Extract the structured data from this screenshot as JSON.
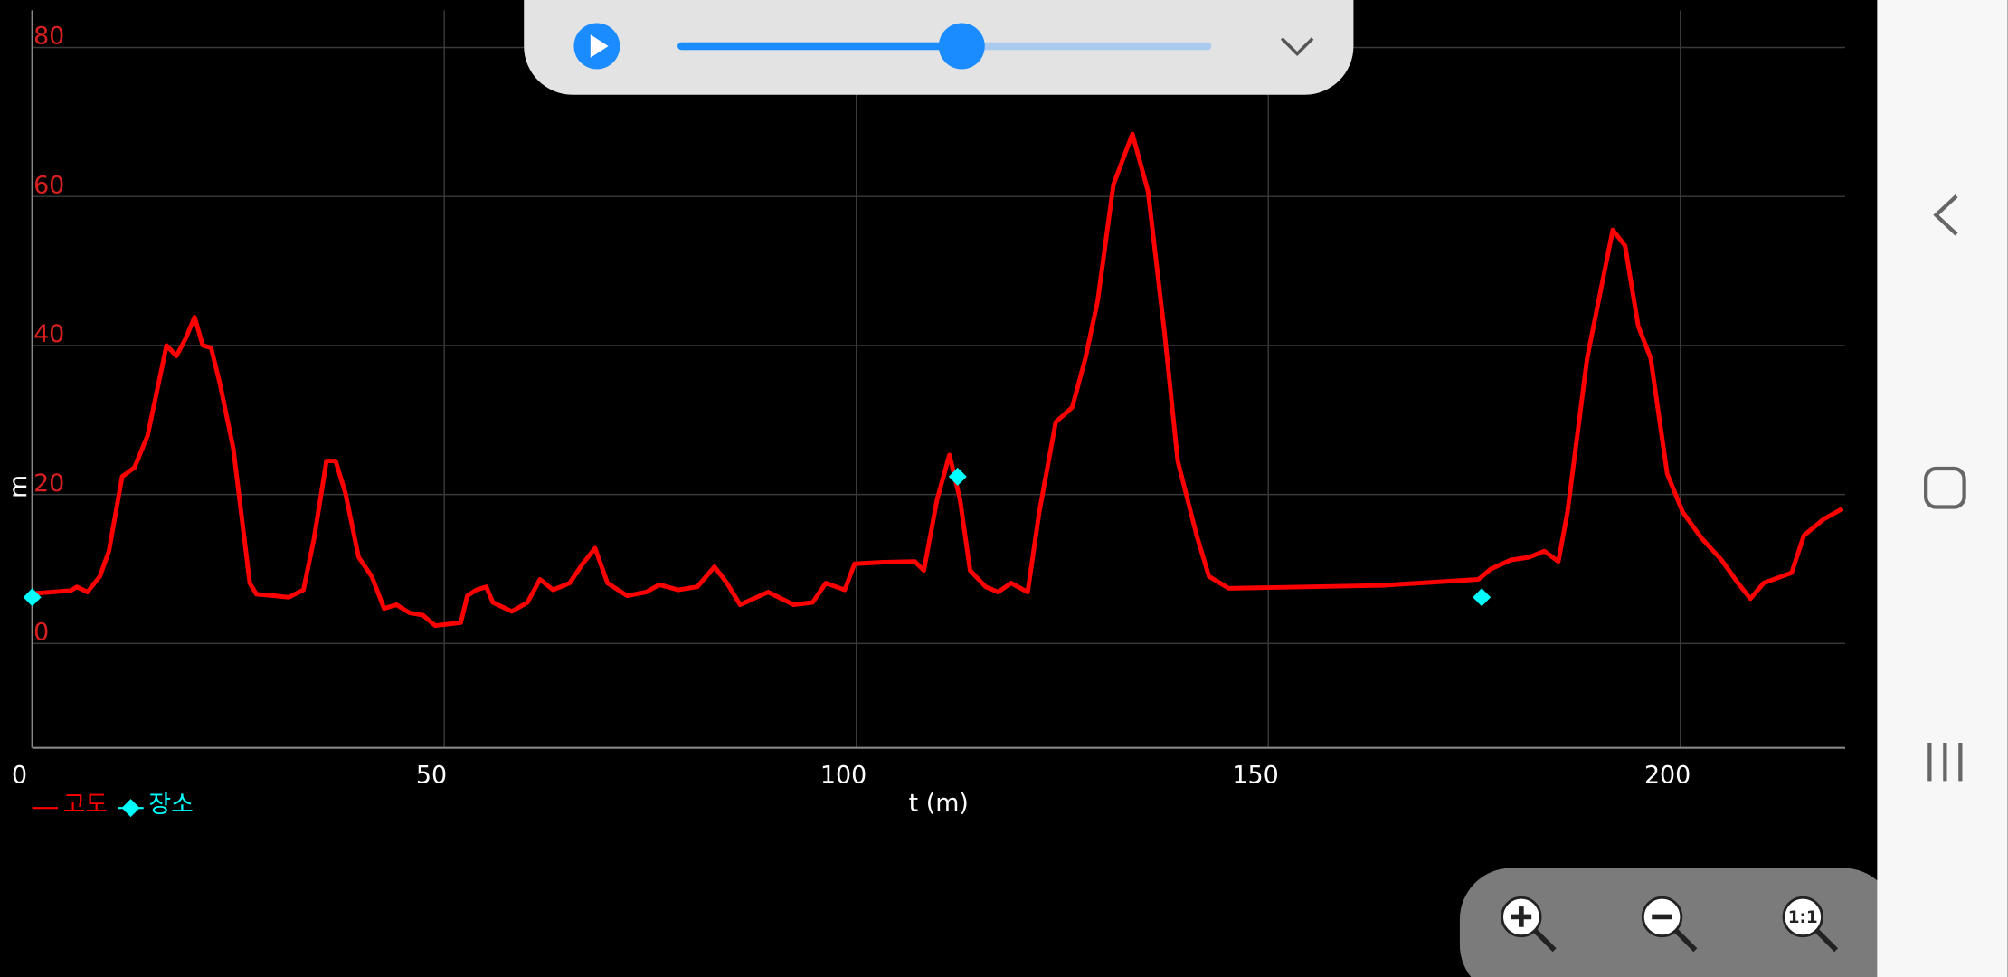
{
  "chart_data": {
    "type": "line",
    "x_label": "t (m)",
    "y_label": "m",
    "xlim": [
      0,
      220
    ],
    "ylim": [
      -14,
      85
    ],
    "xticks": [
      0,
      50,
      100,
      150,
      200
    ],
    "yticks": [
      0,
      20,
      40,
      60,
      80
    ],
    "grid": true,
    "series": [
      {
        "name": "고도",
        "type": "line",
        "color": "#ff0000",
        "x": [
          0,
          4.7,
          5.4,
          6.7,
          8.2,
          9.3,
          10.9,
          12.4,
          14,
          16.3,
          17.5,
          18.6,
          19.7,
          20.7,
          21.7,
          22.8,
          24.4,
          26.4,
          27.2,
          29.5,
          31.1,
          32.9,
          34.2,
          35.7,
          36.8,
          38,
          39.6,
          41.2,
          42.7,
          44.2,
          45.8,
          47.4,
          48.9,
          52,
          52.8,
          53.9,
          55.1,
          55.9,
          58.2,
          60.1,
          61.6,
          63.2,
          65.2,
          66.8,
          68.3,
          69.8,
          72.2,
          74.5,
          76.1,
          78.4,
          80.7,
          82.8,
          84.3,
          85.9,
          89.3,
          92.4,
          94.7,
          96.3,
          98.6,
          99.8,
          103.3,
          107.1,
          108.2,
          109.8,
          111.3,
          112.6,
          113.8,
          115.7,
          117.2,
          118.8,
          120.8,
          122.2,
          124.2,
          126.2,
          127.8,
          129.3,
          131.2,
          133.5,
          135.4,
          137.4,
          139,
          141.3,
          142.8,
          145.2,
          163.8,
          175.5,
          177,
          179.4,
          181.7,
          183.5,
          185.2,
          186.3,
          188.7,
          191.8,
          193.3,
          194.9,
          196.4,
          198.4,
          200.3,
          202.6,
          205,
          207,
          208.5,
          210.1,
          213.5,
          215,
          217.4,
          219.7
        ],
        "values": [
          6.7,
          7.1,
          7.6,
          6.9,
          9,
          12.4,
          22.4,
          23.6,
          27.9,
          40,
          38.6,
          40.9,
          43.8,
          40,
          39.7,
          34.8,
          26.2,
          8.1,
          6.6,
          6.4,
          6.2,
          7.2,
          14.1,
          24.5,
          24.5,
          20.2,
          11.6,
          9,
          4.7,
          5.2,
          4.1,
          3.8,
          2.4,
          2.8,
          6.4,
          7.2,
          7.6,
          5.5,
          4.3,
          5.5,
          8.6,
          7.2,
          8.1,
          10.7,
          12.8,
          8.1,
          6.4,
          6.9,
          7.9,
          7.2,
          7.6,
          10.3,
          8.1,
          5.2,
          6.9,
          5.2,
          5.5,
          8.1,
          7.2,
          10.7,
          10.9,
          11,
          9.8,
          19.3,
          25.3,
          19.3,
          9.8,
          7.6,
          6.9,
          8.1,
          6.9,
          17.6,
          29.7,
          31.7,
          38.3,
          46,
          61.6,
          68.4,
          60.7,
          41.7,
          24.5,
          14.5,
          9,
          7.4,
          7.8,
          8.6,
          10,
          11.2,
          11.6,
          12.4,
          11,
          17.6,
          38.3,
          55.5,
          53.4,
          42.6,
          38.3,
          22.8,
          17.6,
          14.1,
          11.2,
          8.1,
          6,
          8.1,
          9.5,
          14.5,
          16.7,
          18.1
        ]
      },
      {
        "name": "장소",
        "type": "scatter",
        "color": "#00ffff",
        "x": [
          0,
          112.3,
          175.9
        ],
        "values": [
          6.2,
          22.4,
          6.2
        ]
      }
    ]
  },
  "zoom_controls": {
    "reset_label": "1:1"
  }
}
